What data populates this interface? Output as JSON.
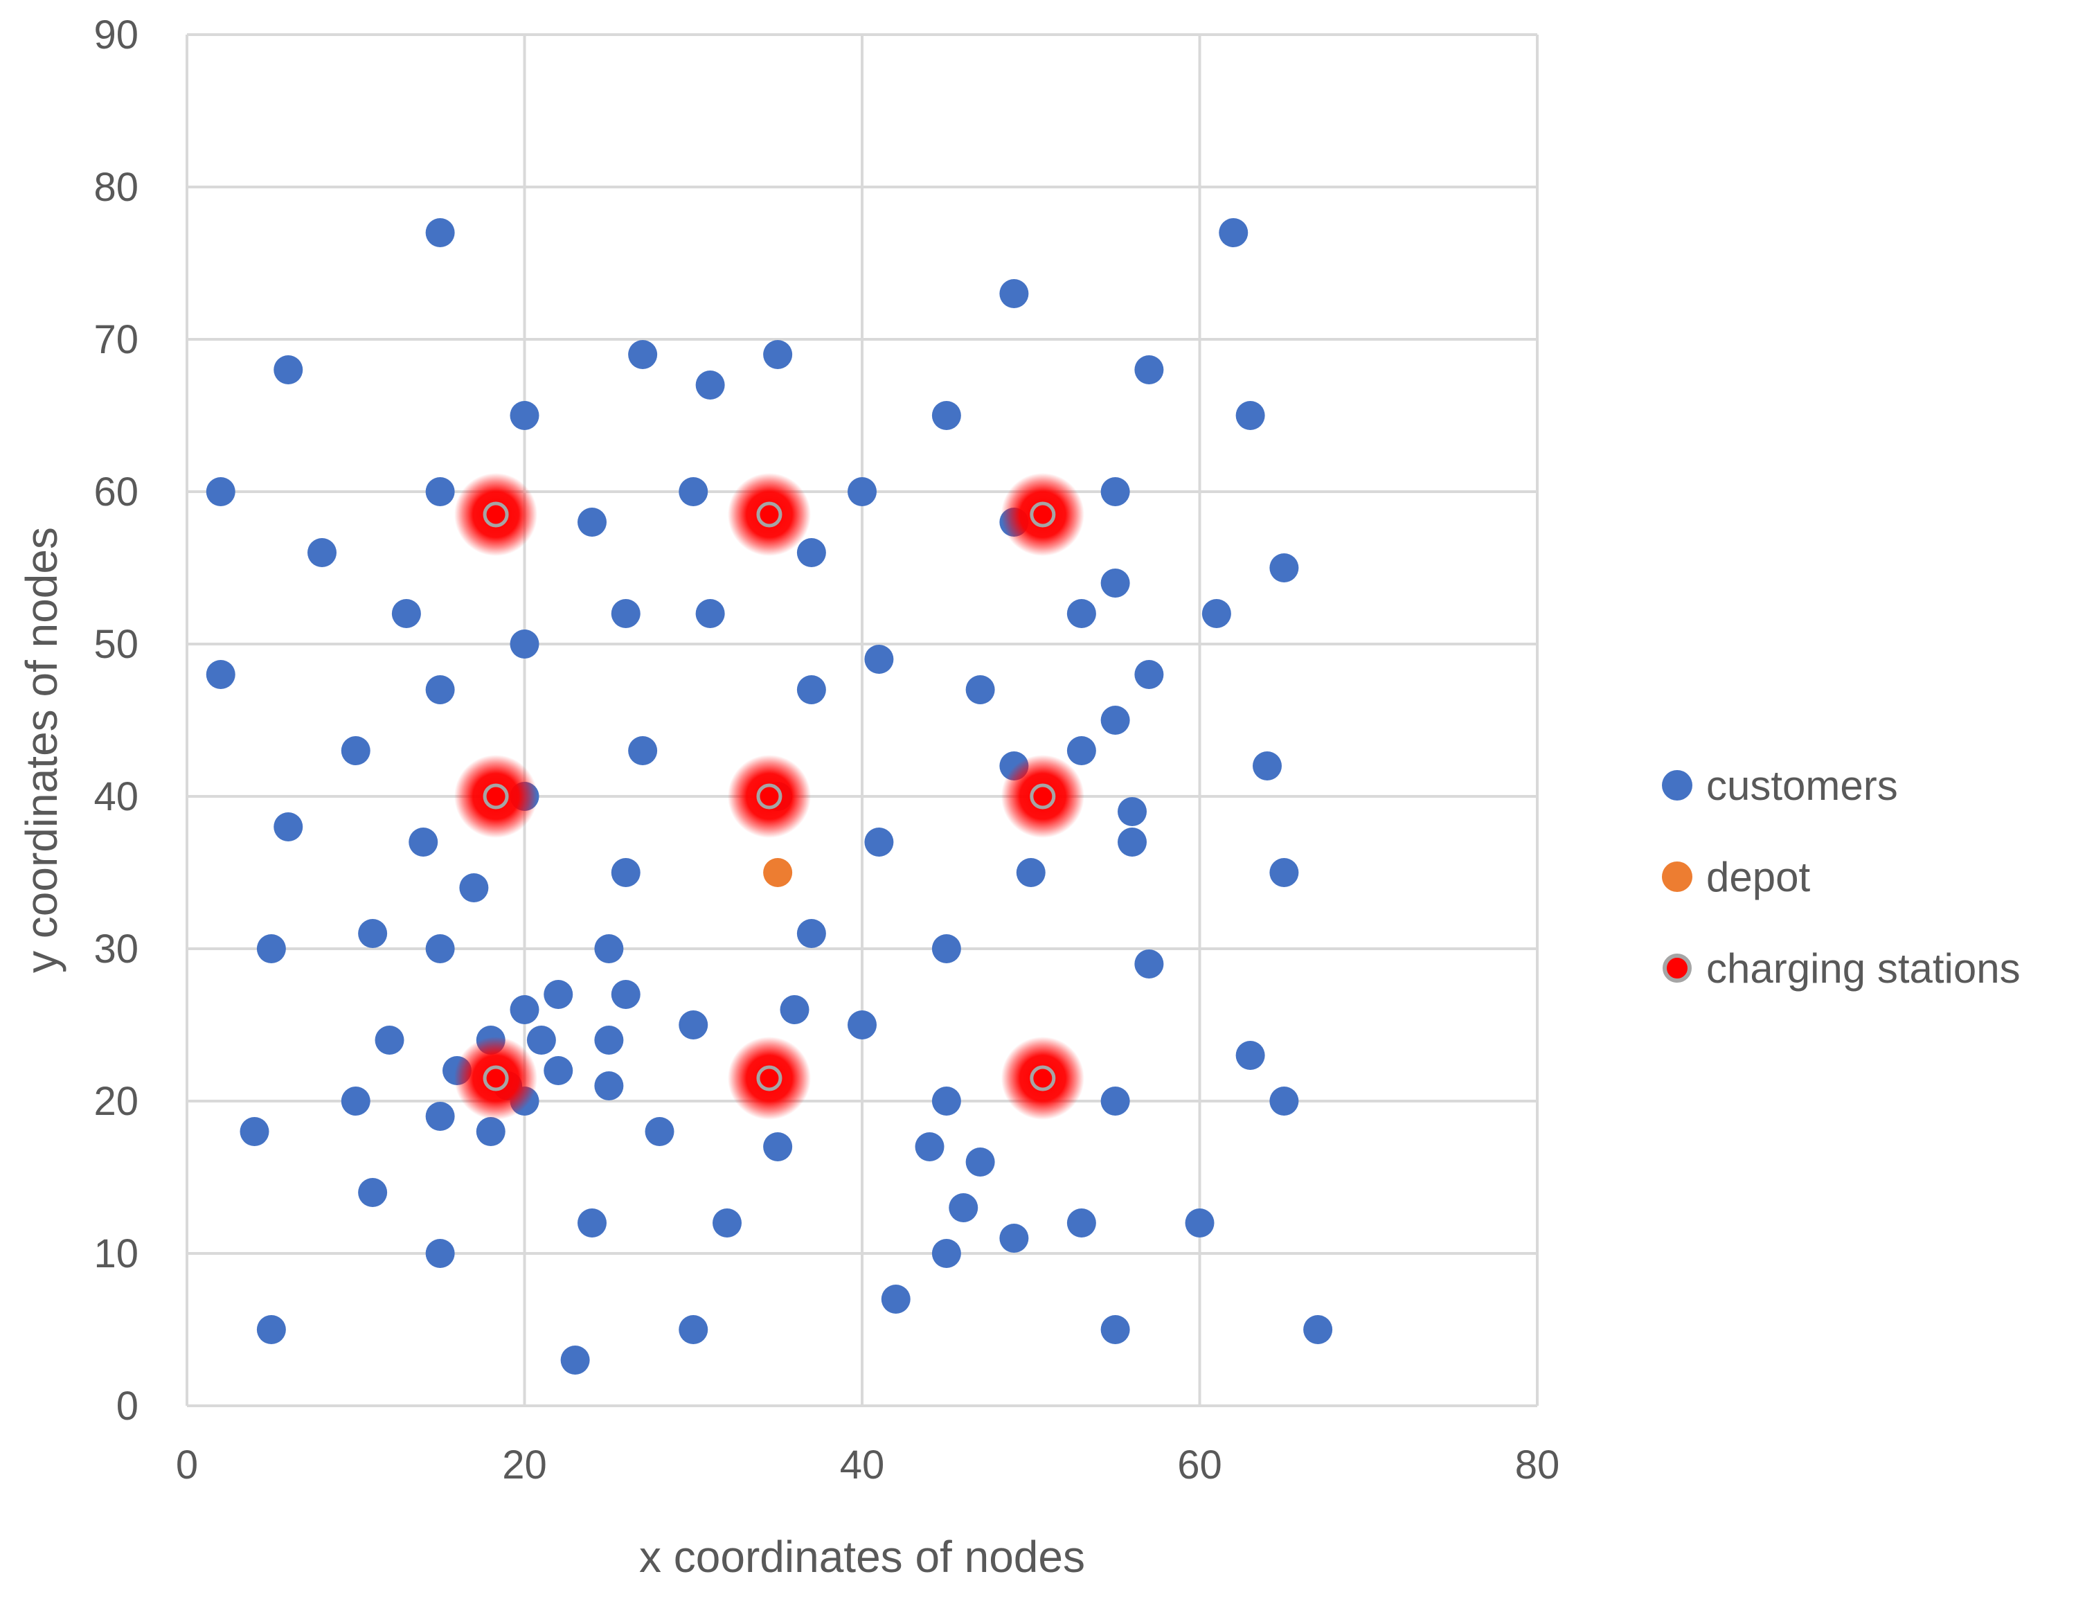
{
  "chart_data": {
    "type": "scatter",
    "title": "",
    "xlabel": "x coordinates of nodes",
    "ylabel": "y coordinates of nodes",
    "xlim": [
      0,
      80
    ],
    "ylim": [
      0,
      90
    ],
    "x_ticks": [
      "0",
      "20",
      "40",
      "60",
      "80"
    ],
    "y_ticks": [
      "0",
      "10",
      "20",
      "30",
      "40",
      "50",
      "60",
      "70",
      "80",
      "90"
    ],
    "grid": true,
    "legend_position": "right",
    "series": [
      {
        "name": "customers",
        "color": "#4472C4",
        "marker": "circle",
        "points": [
          [
            15,
            77
          ],
          [
            62,
            77
          ],
          [
            49,
            73
          ],
          [
            6,
            68
          ],
          [
            27,
            69
          ],
          [
            35,
            69
          ],
          [
            57,
            68
          ],
          [
            31,
            67
          ],
          [
            20,
            65
          ],
          [
            45,
            65
          ],
          [
            63,
            65
          ],
          [
            2,
            60
          ],
          [
            15,
            60
          ],
          [
            30,
            60
          ],
          [
            40,
            60
          ],
          [
            55,
            60
          ],
          [
            24,
            58
          ],
          [
            49,
            58
          ],
          [
            8,
            56
          ],
          [
            37,
            56
          ],
          [
            65,
            55
          ],
          [
            55,
            54
          ],
          [
            13,
            52
          ],
          [
            26,
            52
          ],
          [
            31,
            52
          ],
          [
            53,
            52
          ],
          [
            61,
            52
          ],
          [
            20,
            50
          ],
          [
            41,
            49
          ],
          [
            2,
            48
          ],
          [
            57,
            48
          ],
          [
            15,
            47
          ],
          [
            37,
            47
          ],
          [
            47,
            47
          ],
          [
            55,
            45
          ],
          [
            10,
            43
          ],
          [
            27,
            43
          ],
          [
            53,
            43
          ],
          [
            49,
            42
          ],
          [
            64,
            42
          ],
          [
            20,
            40
          ],
          [
            35,
            40
          ],
          [
            56,
            39
          ],
          [
            6,
            38
          ],
          [
            14,
            37
          ],
          [
            41,
            37
          ],
          [
            56,
            37
          ],
          [
            26,
            35
          ],
          [
            50,
            35
          ],
          [
            65,
            35
          ],
          [
            17,
            34
          ],
          [
            11,
            31
          ],
          [
            37,
            31
          ],
          [
            5,
            30
          ],
          [
            15,
            30
          ],
          [
            25,
            30
          ],
          [
            45,
            30
          ],
          [
            57,
            29
          ],
          [
            22,
            27
          ],
          [
            26,
            27
          ],
          [
            20,
            26
          ],
          [
            36,
            26
          ],
          [
            30,
            25
          ],
          [
            40,
            25
          ],
          [
            12,
            24
          ],
          [
            18,
            24
          ],
          [
            21,
            24
          ],
          [
            25,
            24
          ],
          [
            63,
            23
          ],
          [
            16,
            22
          ],
          [
            22,
            22
          ],
          [
            25,
            21
          ],
          [
            19,
            21
          ],
          [
            10,
            20
          ],
          [
            20,
            20
          ],
          [
            45,
            20
          ],
          [
            55,
            20
          ],
          [
            65,
            20
          ],
          [
            15,
            19
          ],
          [
            4,
            18
          ],
          [
            18,
            18
          ],
          [
            28,
            18
          ],
          [
            35,
            17
          ],
          [
            44,
            17
          ],
          [
            47,
            16
          ],
          [
            11,
            14
          ],
          [
            46,
            13
          ],
          [
            24,
            12
          ],
          [
            32,
            12
          ],
          [
            53,
            12
          ],
          [
            60,
            12
          ],
          [
            49,
            11
          ],
          [
            15,
            10
          ],
          [
            45,
            10
          ],
          [
            42,
            7
          ],
          [
            5,
            5
          ],
          [
            30,
            5
          ],
          [
            55,
            5
          ],
          [
            67,
            5
          ],
          [
            23,
            3
          ]
        ]
      },
      {
        "name": "depot",
        "color": "#ED7D31",
        "marker": "circle",
        "points": [
          [
            35,
            35
          ]
        ]
      },
      {
        "name": "charging stations",
        "color": "#FF0000",
        "edge_color": "#A5A5A5",
        "marker": "circle-glow",
        "points": [
          [
            18.3,
            58.5
          ],
          [
            34.5,
            58.5
          ],
          [
            50.7,
            58.5
          ],
          [
            18.3,
            40
          ],
          [
            34.5,
            40
          ],
          [
            50.7,
            40
          ],
          [
            18.3,
            21.5
          ],
          [
            34.5,
            21.5
          ],
          [
            50.7,
            21.5
          ]
        ]
      }
    ]
  }
}
